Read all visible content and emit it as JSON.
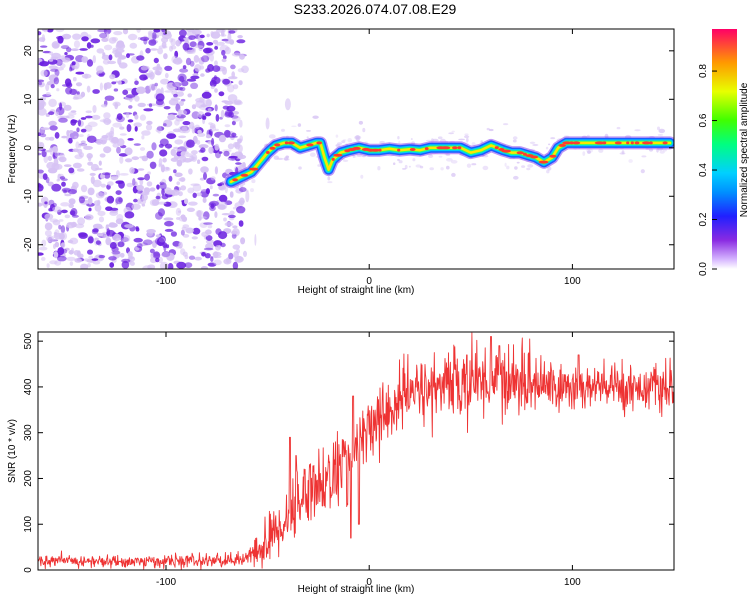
{
  "title": "S233.2026.074.07.08.E29",
  "colors": {
    "line": "#ee3333",
    "ridge_outline": "#1a5cff",
    "ridge_core": "#ff3b2f",
    "noise_light": "#d6c2f4",
    "noise_dark": "#6a1fe0"
  },
  "chart_data": [
    {
      "type": "heatmap",
      "title": "",
      "xlabel": "Height of straight line (km)",
      "ylabel": "Frequency (Hz)",
      "xlim": [
        -163,
        150
      ],
      "ylim": [
        -25,
        24.5
      ],
      "xticks": [
        -100,
        0,
        100
      ],
      "yticks": [
        -20,
        -10,
        0,
        10,
        20
      ],
      "noise_region_x": [
        -163,
        -65
      ],
      "ridge": [
        [
          -68,
          -7
        ],
        [
          -63,
          -6
        ],
        [
          -58,
          -5
        ],
        [
          -54,
          -3
        ],
        [
          -50,
          -1
        ],
        [
          -46,
          0.5
        ],
        [
          -42,
          1
        ],
        [
          -38,
          1
        ],
        [
          -34,
          0
        ],
        [
          -30,
          0.5
        ],
        [
          -26,
          1
        ],
        [
          -24,
          1
        ],
        [
          -22,
          -2
        ],
        [
          -20,
          -4.5
        ],
        [
          -18,
          -2.5
        ],
        [
          -14,
          -1
        ],
        [
          -10,
          -0.5
        ],
        [
          -5,
          0
        ],
        [
          0,
          -0.5
        ],
        [
          5,
          -0.5
        ],
        [
          10,
          -0.2
        ],
        [
          15,
          -0.5
        ],
        [
          20,
          -0.3
        ],
        [
          25,
          -0.5
        ],
        [
          30,
          0
        ],
        [
          35,
          0
        ],
        [
          40,
          0
        ],
        [
          45,
          0
        ],
        [
          50,
          -1
        ],
        [
          55,
          -0.5
        ],
        [
          60,
          0.5
        ],
        [
          63,
          0
        ],
        [
          66,
          -0.5
        ],
        [
          70,
          -1
        ],
        [
          74,
          -1
        ],
        [
          78,
          -1.5
        ],
        [
          82,
          -2
        ],
        [
          86,
          -3
        ],
        [
          90,
          -2
        ],
        [
          93,
          0
        ],
        [
          97,
          1
        ],
        [
          100,
          1
        ],
        [
          105,
          1
        ],
        [
          110,
          1
        ],
        [
          120,
          1
        ],
        [
          130,
          1
        ],
        [
          140,
          1
        ],
        [
          148,
          1
        ]
      ],
      "colorbar": {
        "label": "Normalized spectral amplitude",
        "ticks": [
          "0.0",
          "0.2",
          "0.4",
          "0.6",
          "0.8"
        ],
        "tick_values": [
          0,
          0.2,
          0.4,
          0.6,
          0.8
        ],
        "range": [
          0,
          0.97
        ]
      }
    },
    {
      "type": "line",
      "title": "",
      "xlabel": "Height of straight line (km)",
      "ylabel": "SNR (10 * v/v)",
      "xlim": [
        -163,
        150
      ],
      "ylim": [
        0,
        520
      ],
      "xticks": [
        -100,
        0,
        100
      ],
      "yticks": [
        0,
        100,
        200,
        300,
        400,
        500
      ],
      "envelope": [
        [
          -163,
          20
        ],
        [
          -120,
          18
        ],
        [
          -80,
          20
        ],
        [
          -65,
          22
        ],
        [
          -60,
          25
        ],
        [
          -55,
          40
        ],
        [
          -50,
          60
        ],
        [
          -45,
          90
        ],
        [
          -40,
          120
        ],
        [
          -35,
          150
        ],
        [
          -30,
          180
        ],
        [
          -20,
          200
        ],
        [
          -10,
          240
        ],
        [
          -5,
          270
        ],
        [
          0,
          300
        ],
        [
          5,
          330
        ],
        [
          10,
          350
        ],
        [
          15,
          370
        ],
        [
          20,
          385
        ],
        [
          30,
          400
        ],
        [
          50,
          410
        ],
        [
          60,
          420
        ],
        [
          80,
          410
        ],
        [
          100,
          395
        ],
        [
          120,
          400
        ],
        [
          140,
          400
        ],
        [
          150,
          390
        ]
      ],
      "noise_sigma": [
        [
          -163,
          6
        ],
        [
          -60,
          8
        ],
        [
          -50,
          30
        ],
        [
          -30,
          40
        ],
        [
          0,
          40
        ],
        [
          30,
          35
        ],
        [
          60,
          40
        ],
        [
          100,
          30
        ],
        [
          150,
          22
        ]
      ],
      "spikes": [
        [
          -39,
          290
        ],
        [
          -36,
          250
        ],
        [
          -9,
          445
        ],
        [
          -8,
          380
        ],
        [
          -4,
          290
        ],
        [
          48,
          470
        ],
        [
          60,
          510
        ],
        [
          64,
          490
        ],
        [
          103,
          470
        ]
      ],
      "dips": [
        [
          -23,
          140
        ],
        [
          -9,
          70
        ],
        [
          -5,
          100
        ]
      ]
    }
  ]
}
